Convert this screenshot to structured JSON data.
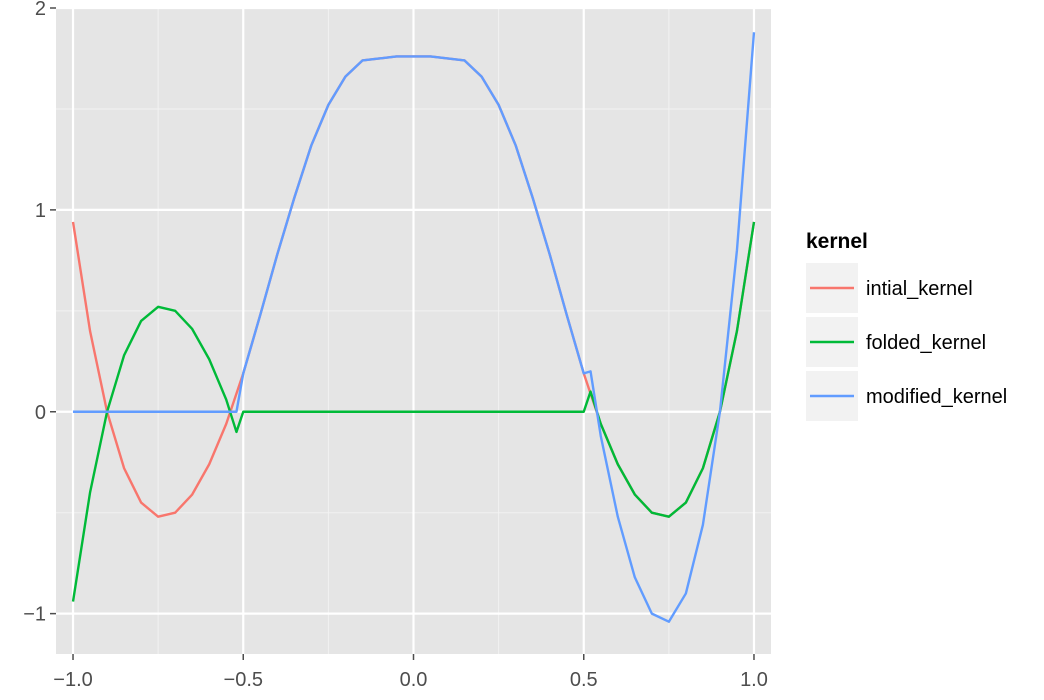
{
  "chart_data": {
    "type": "line",
    "title": "",
    "xlabel": "",
    "ylabel": "",
    "xlim": [
      -1.05,
      1.05
    ],
    "ylim": [
      -1.2,
      2.0
    ],
    "x_ticks": [
      -1.0,
      -0.5,
      0.0,
      0.5,
      1.0
    ],
    "x_tick_labels": [
      "−1.0",
      "−0.5",
      "0.0",
      "0.5",
      "1.0"
    ],
    "y_ticks": [
      -1,
      0,
      1,
      2
    ],
    "y_tick_labels": [
      "−1",
      "0",
      "1",
      "2"
    ],
    "grid": true,
    "legend": {
      "title": "kernel",
      "position": "right"
    },
    "series": [
      {
        "name": "intial_kernel",
        "color": "#F8766D",
        "points": [
          [
            -1.0,
            0.94
          ],
          [
            -0.95,
            0.4
          ],
          [
            -0.9,
            0.0
          ],
          [
            -0.85,
            -0.28
          ],
          [
            -0.8,
            -0.45
          ],
          [
            -0.75,
            -0.52
          ],
          [
            -0.7,
            -0.5
          ],
          [
            -0.65,
            -0.41
          ],
          [
            -0.6,
            -0.26
          ],
          [
            -0.55,
            -0.06
          ],
          [
            -0.5,
            0.19
          ],
          [
            -0.45,
            0.48
          ],
          [
            -0.4,
            0.78
          ],
          [
            -0.35,
            1.06
          ],
          [
            -0.3,
            1.32
          ],
          [
            -0.25,
            1.52
          ],
          [
            -0.2,
            1.66
          ],
          [
            -0.15,
            1.74
          ],
          [
            -0.1,
            1.75
          ],
          [
            -0.05,
            1.76
          ],
          [
            0.0,
            1.76
          ],
          [
            0.05,
            1.76
          ],
          [
            0.1,
            1.75
          ],
          [
            0.15,
            1.74
          ],
          [
            0.2,
            1.66
          ],
          [
            0.25,
            1.52
          ],
          [
            0.3,
            1.32
          ],
          [
            0.35,
            1.06
          ],
          [
            0.4,
            0.78
          ],
          [
            0.45,
            0.48
          ],
          [
            0.5,
            0.19
          ],
          [
            0.55,
            -0.06
          ],
          [
            0.6,
            -0.26
          ],
          [
            0.65,
            -0.41
          ],
          [
            0.7,
            -0.5
          ],
          [
            0.75,
            -0.52
          ],
          [
            0.8,
            -0.45
          ],
          [
            0.85,
            -0.28
          ],
          [
            0.9,
            0.0
          ],
          [
            0.95,
            0.4
          ],
          [
            1.0,
            0.94
          ]
        ]
      },
      {
        "name": "folded_kernel",
        "color": "#00BA38",
        "points": [
          [
            -1.0,
            -0.94
          ],
          [
            -0.95,
            -0.4
          ],
          [
            -0.9,
            0.0
          ],
          [
            -0.85,
            0.28
          ],
          [
            -0.8,
            0.45
          ],
          [
            -0.75,
            0.52
          ],
          [
            -0.7,
            0.5
          ],
          [
            -0.65,
            0.41
          ],
          [
            -0.6,
            0.26
          ],
          [
            -0.55,
            0.06
          ],
          [
            -0.52,
            -0.1
          ],
          [
            -0.5,
            0.0
          ],
          [
            0.5,
            0.0
          ],
          [
            0.52,
            0.1
          ],
          [
            0.55,
            -0.06
          ],
          [
            0.6,
            -0.26
          ],
          [
            0.65,
            -0.41
          ],
          [
            0.7,
            -0.5
          ],
          [
            0.75,
            -0.52
          ],
          [
            0.8,
            -0.45
          ],
          [
            0.85,
            -0.28
          ],
          [
            0.9,
            0.0
          ],
          [
            0.95,
            0.4
          ],
          [
            1.0,
            0.94
          ]
        ]
      },
      {
        "name": "modified_kernel",
        "color": "#619CFF",
        "points": [
          [
            -1.0,
            0.0
          ],
          [
            -0.52,
            0.0
          ],
          [
            -0.5,
            0.19
          ],
          [
            -0.45,
            0.48
          ],
          [
            -0.4,
            0.78
          ],
          [
            -0.35,
            1.06
          ],
          [
            -0.3,
            1.32
          ],
          [
            -0.25,
            1.52
          ],
          [
            -0.2,
            1.66
          ],
          [
            -0.15,
            1.74
          ],
          [
            -0.1,
            1.75
          ],
          [
            -0.05,
            1.76
          ],
          [
            0.0,
            1.76
          ],
          [
            0.05,
            1.76
          ],
          [
            0.1,
            1.75
          ],
          [
            0.15,
            1.74
          ],
          [
            0.2,
            1.66
          ],
          [
            0.25,
            1.52
          ],
          [
            0.3,
            1.32
          ],
          [
            0.35,
            1.06
          ],
          [
            0.4,
            0.78
          ],
          [
            0.45,
            0.48
          ],
          [
            0.5,
            0.19
          ],
          [
            0.52,
            0.2
          ],
          [
            0.55,
            -0.12
          ],
          [
            0.6,
            -0.52
          ],
          [
            0.65,
            -0.82
          ],
          [
            0.7,
            -1.0
          ],
          [
            0.75,
            -1.04
          ],
          [
            0.8,
            -0.9
          ],
          [
            0.85,
            -0.56
          ],
          [
            0.9,
            0.0
          ],
          [
            0.95,
            0.8
          ],
          [
            1.0,
            1.88
          ]
        ]
      }
    ]
  }
}
